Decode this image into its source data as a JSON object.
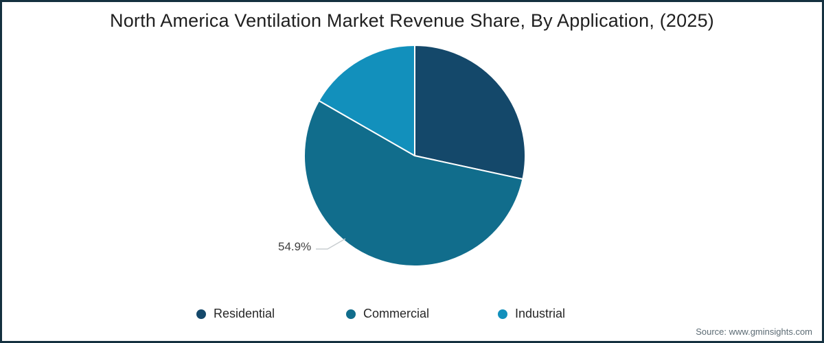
{
  "title": "North America Ventilation Market Revenue Share, By Application, (2025)",
  "source_note": "Source: www.gminsights.com",
  "frame": {
    "border_color": "#143140",
    "background_color": "#ffffff"
  },
  "chart_data": {
    "type": "pie",
    "title": "North America Ventilation Market Revenue Share, By Application, (2025)",
    "start_angle_deg": 0,
    "direction": "clockwise",
    "legend_position": "bottom",
    "slice_border_color": "#ffffff",
    "leader_line_color": "#c8cdd0",
    "slices": [
      {
        "name": "Residential",
        "value": 28.4,
        "color": "#14486a",
        "data_label": ""
      },
      {
        "name": "Commercial",
        "value": 54.9,
        "color": "#116d8c",
        "data_label": "54.9%"
      },
      {
        "name": "Industrial",
        "value": 16.7,
        "color": "#1290bc",
        "data_label": ""
      }
    ]
  }
}
